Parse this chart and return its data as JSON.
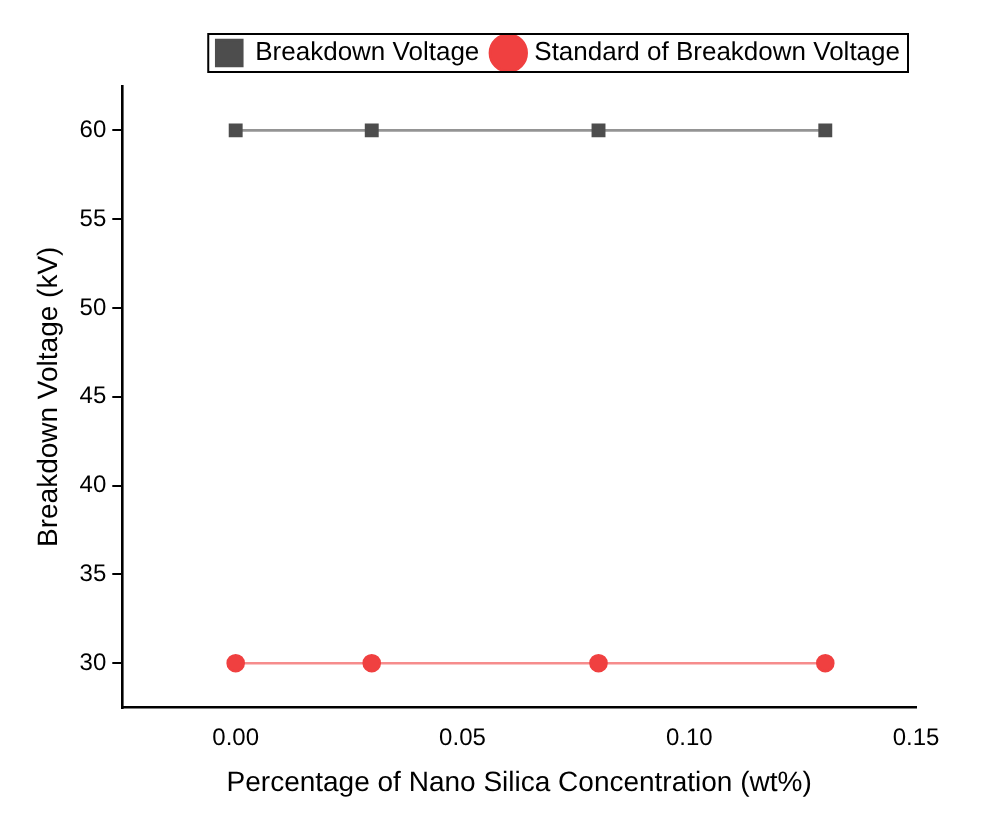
{
  "chart_data": {
    "type": "line",
    "xlabel": "Percentage of Nano Silica Concentration (wt%)",
    "ylabel": "Breakdown Voltage (kV)",
    "x": [
      0,
      0.03,
      0.08,
      0.13
    ],
    "series": [
      {
        "name": "Breakdown Voltage",
        "color": "#4d4d4d",
        "values": [
          60,
          60,
          60,
          60
        ],
        "marker": "square"
      },
      {
        "name": "Standard of Breakdown Voltage",
        "color": "#f04040",
        "values": [
          30,
          30,
          30,
          30
        ],
        "marker": "circle"
      }
    ],
    "xlim": [
      -0.025,
      0.15
    ],
    "xticks": [
      {
        "value": 0,
        "label": "0.00"
      },
      {
        "value": 0.05,
        "label": "0.05"
      },
      {
        "value": 0.1,
        "label": "0.10"
      },
      {
        "value": 0.15,
        "label": "0.15"
      }
    ],
    "ylim": [
      27.5,
      62.5
    ],
    "yticks": [
      30,
      35,
      40,
      45,
      50,
      55,
      60
    ],
    "grid": false,
    "legend": "top right",
    "line_style": "solid"
  }
}
